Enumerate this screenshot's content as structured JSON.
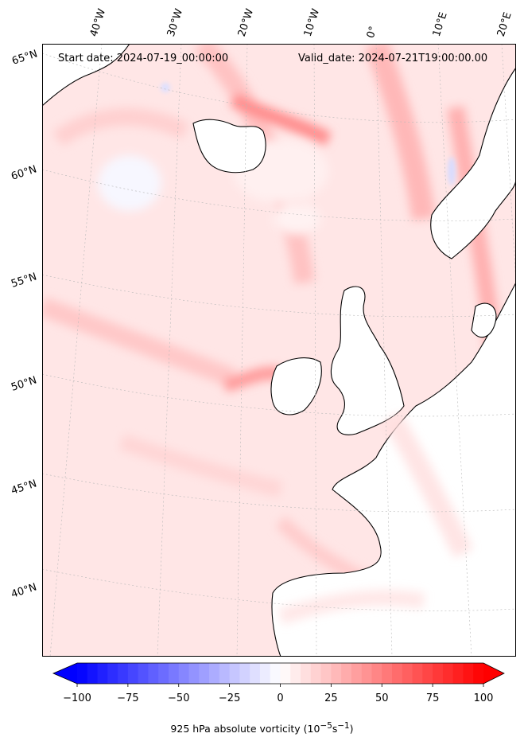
{
  "map": {
    "start_date": "Start date: 2024-07-19_00:00:00",
    "valid_date": "Valid_date: 2024-07-21T19:00:00.00",
    "lon_labels": [
      "40°W",
      "30°W",
      "20°W",
      "10°W",
      "0°",
      "10°E",
      "20°E"
    ],
    "lat_labels": [
      "65°N",
      "60°N",
      "55°N",
      "50°N",
      "45°N",
      "40°N"
    ],
    "field": "925 hPa absolute vorticity",
    "region": "North Atlantic / Europe"
  },
  "colorbar": {
    "ticks": [
      "−100",
      "−75",
      "−50",
      "−25",
      "0",
      "25",
      "50",
      "75",
      "100"
    ],
    "min": -100,
    "max": 100,
    "label": "925 hPa absolute vorticity (10",
    "label_exp1": "−5",
    "label_mid": "s",
    "label_exp2": "−1",
    "label_end": ")",
    "colors": {
      "negative": "#0000ff",
      "zero": "#ffffff",
      "positive": "#ff0000",
      "background_field": "#ffe5e5"
    }
  }
}
